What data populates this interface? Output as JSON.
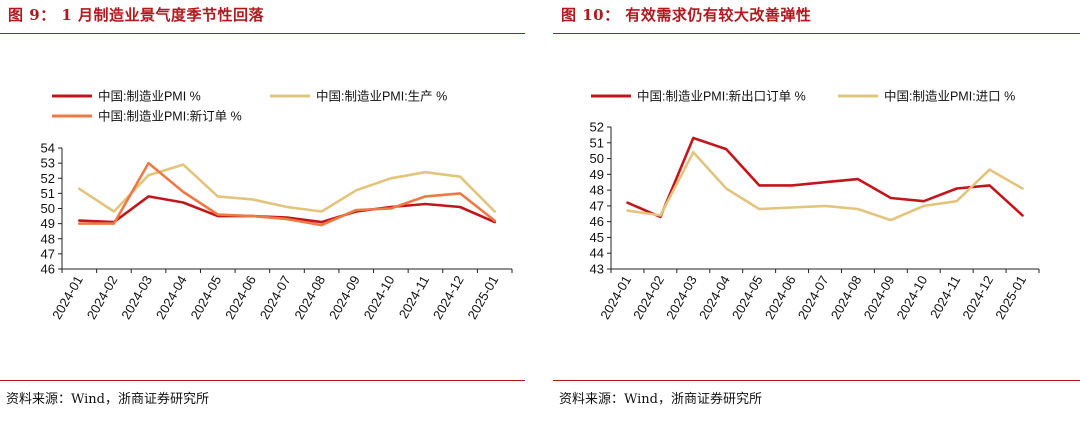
{
  "figures": [
    {
      "title": "图 9：  1 月制造业景气度季节性回落",
      "source": "资料来源：Wind，浙商证券研究所"
    },
    {
      "title": "图 10：  有效需求仍有较大改善弹性",
      "source": "资料来源：Wind，浙商证券研究所"
    }
  ],
  "chart_data": [
    {
      "type": "line",
      "title": "",
      "xlabel": "",
      "ylabel": "",
      "x": [
        "2024-01",
        "2024-02",
        "2024-03",
        "2024-04",
        "2024-05",
        "2024-06",
        "2024-07",
        "2024-08",
        "2024-09",
        "2024-10",
        "2024-11",
        "2024-12",
        "2025-01"
      ],
      "ylim": [
        46,
        54
      ],
      "yticks": [
        46,
        47,
        48,
        49,
        50,
        51,
        52,
        53,
        54
      ],
      "grid": false,
      "legend_position": "top",
      "series": [
        {
          "name": "中国:制造业PMI %",
          "color": "#c0171c",
          "values": [
            49.2,
            49.1,
            50.8,
            50.4,
            49.5,
            49.5,
            49.4,
            49.1,
            49.8,
            50.1,
            50.3,
            50.1,
            49.1
          ]
        },
        {
          "name": "中国:制造业PMI:生产 %",
          "color": "#e2c47c",
          "values": [
            51.3,
            49.8,
            52.2,
            52.9,
            50.8,
            50.6,
            50.1,
            49.8,
            51.2,
            52.0,
            52.4,
            52.1,
            49.8
          ]
        },
        {
          "name": "中国:制造业PMI:新订单 %",
          "color": "#ec7a45",
          "values": [
            49.0,
            49.0,
            53.0,
            51.1,
            49.6,
            49.5,
            49.3,
            48.9,
            49.9,
            50.0,
            50.8,
            51.0,
            49.2
          ]
        }
      ]
    },
    {
      "type": "line",
      "title": "",
      "xlabel": "",
      "ylabel": "",
      "x": [
        "2024-01",
        "2024-02",
        "2024-03",
        "2024-04",
        "2024-05",
        "2024-06",
        "2024-07",
        "2024-08",
        "2024-09",
        "2024-10",
        "2024-11",
        "2024-12",
        "2025-01"
      ],
      "ylim": [
        43,
        52
      ],
      "yticks": [
        43,
        44,
        45,
        46,
        47,
        48,
        49,
        50,
        51,
        52
      ],
      "grid": false,
      "legend_position": "top",
      "series": [
        {
          "name": "中国:制造业PMI:新出口订单 %",
          "color": "#c0171c",
          "values": [
            47.2,
            46.3,
            51.3,
            50.6,
            48.3,
            48.3,
            48.5,
            48.7,
            47.5,
            47.3,
            48.1,
            48.3,
            46.4
          ]
        },
        {
          "name": "中国:制造业PMI:进口 %",
          "color": "#e2c47c",
          "values": [
            46.7,
            46.4,
            50.4,
            48.1,
            46.8,
            46.9,
            47.0,
            46.8,
            46.1,
            47.0,
            47.3,
            49.3,
            48.1
          ]
        }
      ]
    }
  ]
}
